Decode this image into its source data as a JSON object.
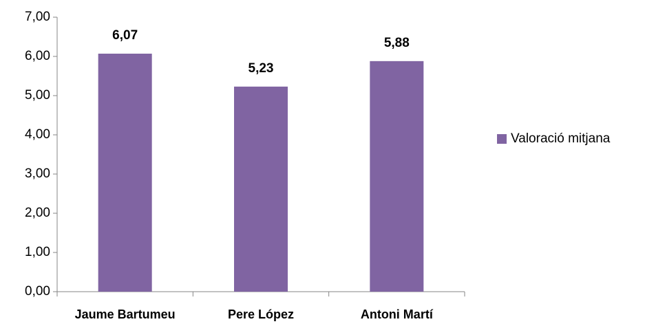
{
  "chart_data": {
    "type": "bar",
    "categories": [
      "Jaume Bartumeu",
      "Pere López",
      "Antoni Martí"
    ],
    "series": [
      {
        "name": "Valoració mitjana",
        "color": "#8064a2",
        "values": [
          6.07,
          5.23,
          5.88
        ],
        "value_labels": [
          "6,07",
          "5,23",
          "5,88"
        ]
      }
    ],
    "ylim": [
      0,
      7
    ],
    "yticks": [
      {
        "value": 0,
        "label": "0,00"
      },
      {
        "value": 1,
        "label": "1,00"
      },
      {
        "value": 2,
        "label": "2,00"
      },
      {
        "value": 3,
        "label": "3,00"
      },
      {
        "value": 4,
        "label": "4,00"
      },
      {
        "value": 5,
        "label": "5,00"
      },
      {
        "value": 6,
        "label": "6,00"
      },
      {
        "value": 7,
        "label": "7,00"
      }
    ],
    "grid": false,
    "legend": "right"
  }
}
